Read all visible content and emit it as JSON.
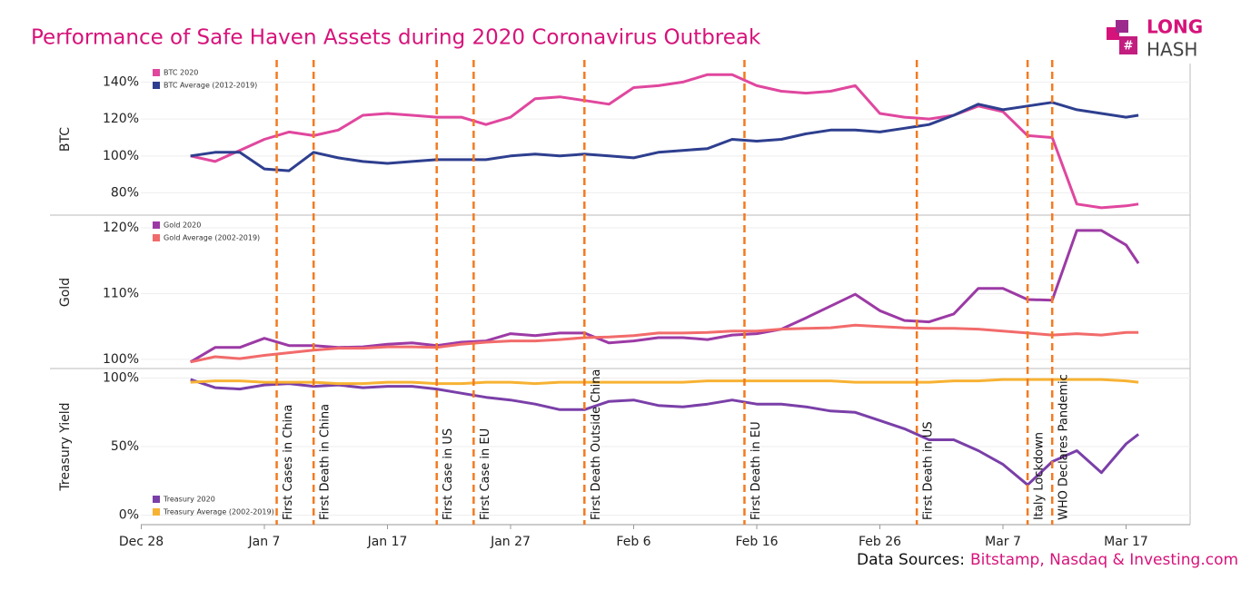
{
  "header": {
    "title": "Performance of Safe Haven Assets during 2020 Coronavirus Outbreak",
    "logo_top": "LONG",
    "logo_bottom": "HASH"
  },
  "sources": {
    "label": "Data Sources:",
    "text": "Bitstamp, Nasdaq & Investing.com"
  },
  "events": [
    {
      "date": "Jan 8",
      "label": "First Cases in China"
    },
    {
      "date": "Jan 11",
      "label": "First Death in China"
    },
    {
      "date": "Jan 21",
      "label": "First Case in US"
    },
    {
      "date": "Jan 24",
      "label": "First Case in EU"
    },
    {
      "date": "Feb 2",
      "label": "First Death Outside China"
    },
    {
      "date": "Feb 15",
      "label": "First Death in EU"
    },
    {
      "date": "Feb 29",
      "label": "First Death in US"
    },
    {
      "date": "Mar 9",
      "label": "Italy Lockdown"
    },
    {
      "date": "Mar 11",
      "label": "WHO Declares Pandemic"
    }
  ],
  "chart_data": [
    {
      "type": "line",
      "y_label": "BTC",
      "x": [
        "Jan 1",
        "Jan 3",
        "Jan 5",
        "Jan 7",
        "Jan 9",
        "Jan 11",
        "Jan 13",
        "Jan 15",
        "Jan 17",
        "Jan 19",
        "Jan 21",
        "Jan 23",
        "Jan 25",
        "Jan 27",
        "Jan 29",
        "Jan 31",
        "Feb 2",
        "Feb 4",
        "Feb 6",
        "Feb 8",
        "Feb 10",
        "Feb 12",
        "Feb 14",
        "Feb 16",
        "Feb 18",
        "Feb 20",
        "Feb 22",
        "Feb 24",
        "Feb 26",
        "Feb 28",
        "Mar 1",
        "Mar 3",
        "Mar 5",
        "Mar 7",
        "Mar 9",
        "Mar 11",
        "Mar 13",
        "Mar 15",
        "Mar 17",
        "Mar 18"
      ],
      "ylim": [
        68,
        150
      ],
      "yticks": [
        {
          "value": 80,
          "label": "80%"
        },
        {
          "value": 100,
          "label": "100%"
        },
        {
          "value": 120,
          "label": "120%"
        },
        {
          "value": 140,
          "label": "140%"
        }
      ],
      "grid": true,
      "series": [
        {
          "name": "BTC 2020",
          "color": "#e0479e",
          "values": [
            100,
            97,
            103,
            109,
            113,
            111,
            114,
            122,
            123,
            122,
            121,
            121,
            117,
            121,
            131,
            132,
            130,
            128,
            137,
            138,
            140,
            144,
            144,
            138,
            135,
            134,
            135,
            138,
            123,
            121,
            120,
            122,
            127,
            124,
            111,
            110,
            74,
            72,
            73,
            74
          ]
        },
        {
          "name": "BTC Average (2012-2019)",
          "color": "#2e3f8f",
          "values": [
            100,
            102,
            102,
            93,
            92,
            102,
            99,
            97,
            96,
            97,
            98,
            98,
            98,
            100,
            101,
            100,
            101,
            100,
            99,
            102,
            103,
            104,
            109,
            108,
            109,
            112,
            114,
            114,
            113,
            115,
            117,
            122,
            128,
            125,
            127,
            129,
            125,
            123,
            121,
            122
          ]
        }
      ]
    },
    {
      "type": "line",
      "y_label": "Gold",
      "x": [
        "Jan 1",
        "Jan 3",
        "Jan 5",
        "Jan 7",
        "Jan 9",
        "Jan 11",
        "Jan 13",
        "Jan 15",
        "Jan 17",
        "Jan 19",
        "Jan 21",
        "Jan 23",
        "Jan 25",
        "Jan 27",
        "Jan 29",
        "Jan 31",
        "Feb 2",
        "Feb 4",
        "Feb 6",
        "Feb 8",
        "Feb 10",
        "Feb 12",
        "Feb 14",
        "Feb 16",
        "Feb 18",
        "Feb 20",
        "Feb 22",
        "Feb 24",
        "Feb 26",
        "Feb 28",
        "Mar 1",
        "Mar 3",
        "Mar 5",
        "Mar 7",
        "Mar 9",
        "Mar 11",
        "Mar 13",
        "Mar 15",
        "Mar 17",
        "Mar 18"
      ],
      "ylim": [
        98.6,
        121.8
      ],
      "yticks": [
        {
          "value": 100,
          "label": "100%"
        },
        {
          "value": 110,
          "label": "110%"
        },
        {
          "value": 120,
          "label": "120%"
        }
      ],
      "grid": true,
      "series": [
        {
          "name": "Gold 2020",
          "color": "#9c3aa5",
          "values": [
            99.6,
            101.8,
            101.8,
            103.2,
            102.1,
            102.1,
            101.8,
            101.9,
            102.3,
            102.5,
            102.1,
            102.6,
            102.8,
            103.9,
            103.6,
            104.0,
            104.0,
            102.5,
            102.8,
            103.3,
            103.3,
            103.0,
            103.7,
            103.9,
            104.6,
            106.3,
            108.1,
            109.9,
            107.4,
            105.9,
            105.7,
            106.9,
            110.8,
            110.8,
            109.1,
            109.0,
            119.6,
            119.6,
            117.4,
            114.6
          ]
        },
        {
          "name": "Gold Average (2002-2019)",
          "color": "#f26b6b",
          "values": [
            99.6,
            100.4,
            100.1,
            100.6,
            101.0,
            101.4,
            101.7,
            101.7,
            101.9,
            101.9,
            101.8,
            102.3,
            102.6,
            102.8,
            102.8,
            103.0,
            103.3,
            103.4,
            103.6,
            104.0,
            104.0,
            104.1,
            104.3,
            104.3,
            104.6,
            104.7,
            104.8,
            105.2,
            105.0,
            104.8,
            104.7,
            104.7,
            104.6,
            104.3,
            104.0,
            103.7,
            103.9,
            103.7,
            104.1,
            104.1
          ]
        }
      ]
    },
    {
      "type": "line",
      "y_label": "Treasury Yield",
      "x": [
        "Jan 1",
        "Jan 3",
        "Jan 5",
        "Jan 7",
        "Jan 9",
        "Jan 11",
        "Jan 13",
        "Jan 15",
        "Jan 17",
        "Jan 19",
        "Jan 21",
        "Jan 23",
        "Jan 25",
        "Jan 27",
        "Jan 29",
        "Jan 31",
        "Feb 2",
        "Feb 4",
        "Feb 6",
        "Feb 8",
        "Feb 10",
        "Feb 12",
        "Feb 14",
        "Feb 16",
        "Feb 18",
        "Feb 20",
        "Feb 22",
        "Feb 24",
        "Feb 26",
        "Feb 28",
        "Mar 1",
        "Mar 3",
        "Mar 5",
        "Mar 7",
        "Mar 9",
        "Mar 11",
        "Mar 13",
        "Mar 15",
        "Mar 17",
        "Mar 18"
      ],
      "ylim": [
        -7,
        107
      ],
      "yticks": [
        {
          "value": 0,
          "label": "0%"
        },
        {
          "value": 50,
          "label": "50%"
        },
        {
          "value": 100,
          "label": "100%"
        }
      ],
      "xticks": [
        "Dec 28",
        "Jan 7",
        "Jan 17",
        "Jan 27",
        "Feb 6",
        "Feb 16",
        "Feb 26",
        "Mar 7",
        "Mar 17"
      ],
      "grid": true,
      "series": [
        {
          "name": "Treasury 2020",
          "color": "#7a3fa8",
          "values": [
            99,
            93,
            92,
            95,
            96,
            94,
            95,
            93,
            94,
            94,
            92,
            89,
            86,
            84,
            81,
            77,
            77,
            83,
            84,
            80,
            79,
            81,
            84,
            81,
            81,
            79,
            76,
            75,
            69,
            63,
            55,
            55,
            47,
            37,
            22,
            39,
            47,
            31,
            52,
            59
          ]
        },
        {
          "name": "Treasury Average (2002-2019)",
          "color": "#f7b233",
          "values": [
            97,
            98,
            98,
            97,
            97,
            97,
            96,
            96,
            97,
            97,
            96,
            96,
            97,
            97,
            96,
            97,
            97,
            97,
            97,
            97,
            97,
            98,
            98,
            98,
            98,
            98,
            98,
            97,
            97,
            97,
            97,
            98,
            98,
            99,
            99,
            99,
            99,
            99,
            98,
            97
          ]
        }
      ]
    }
  ]
}
